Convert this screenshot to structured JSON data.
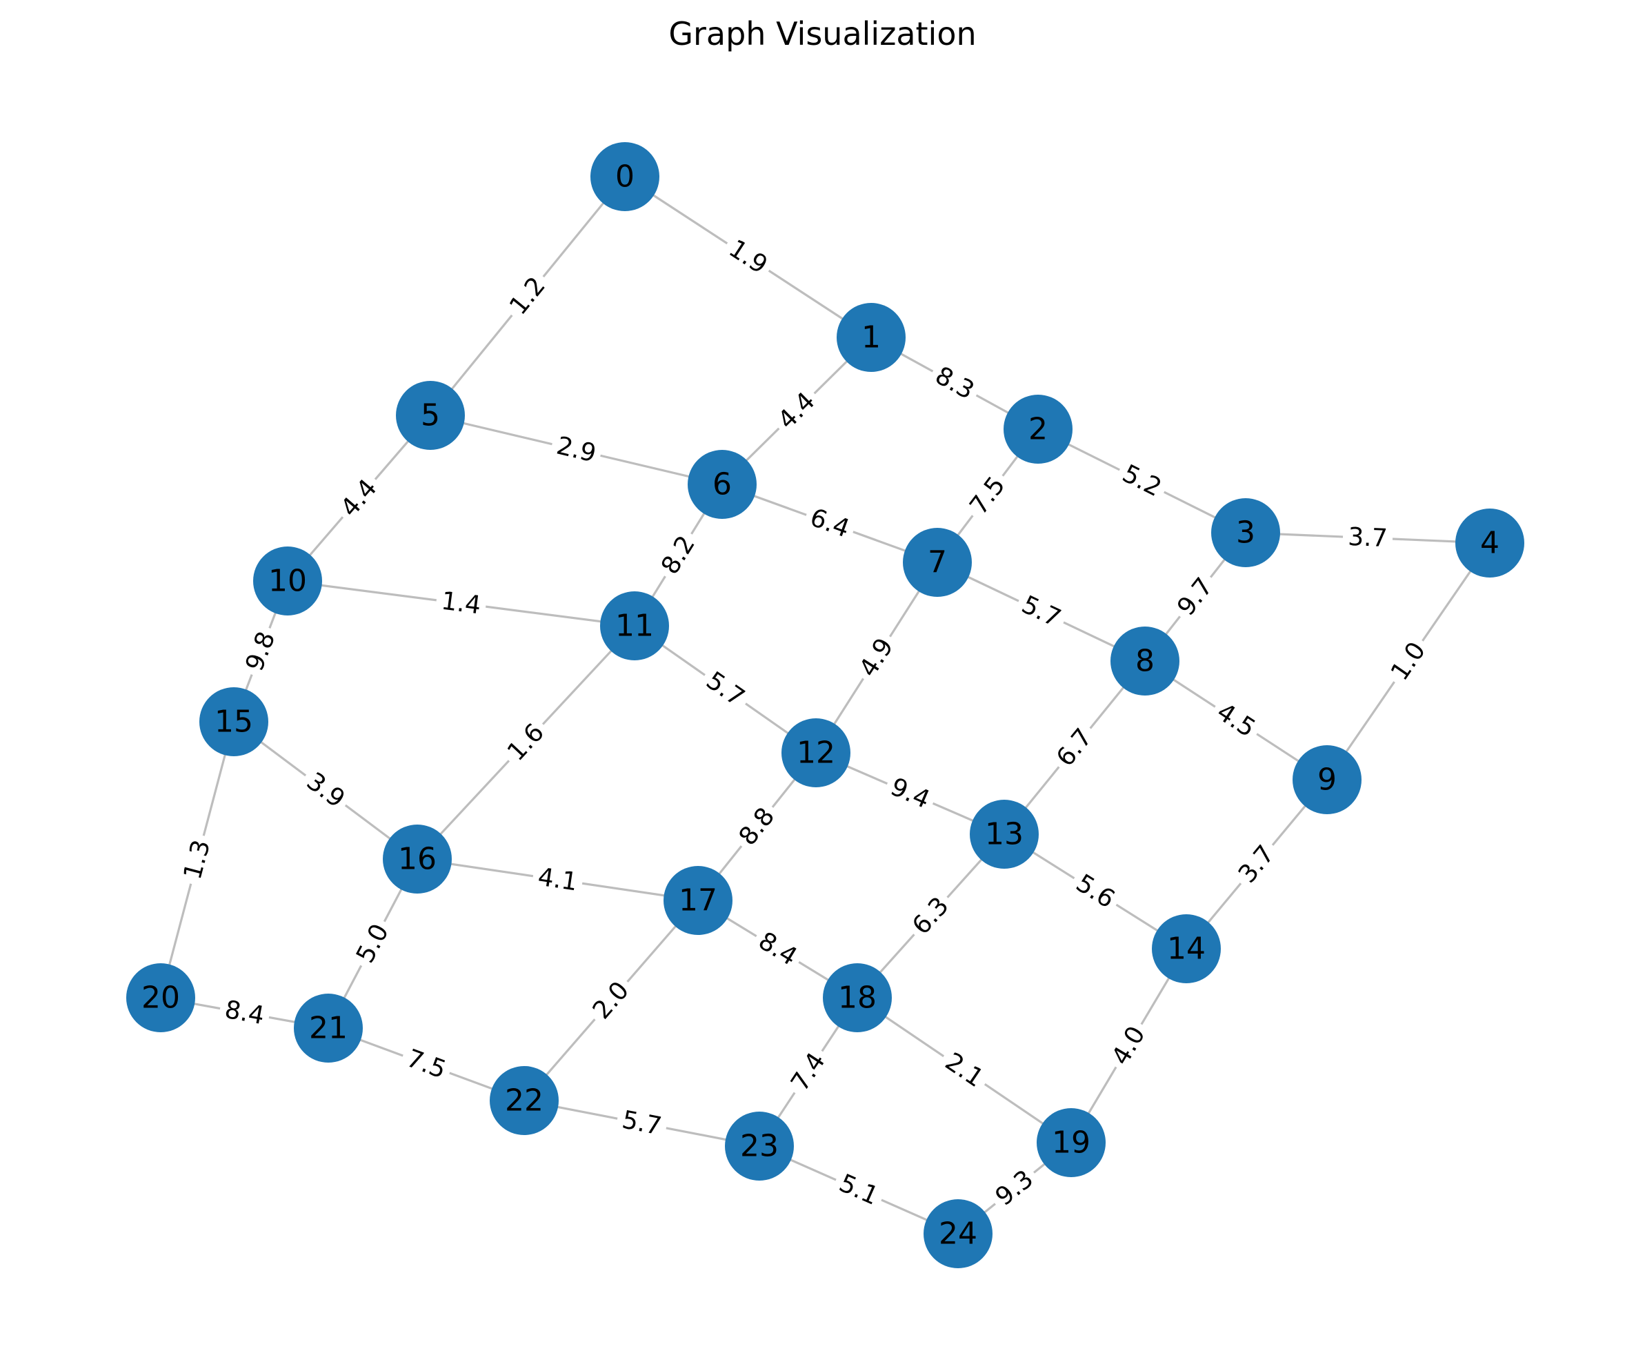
{
  "title": "Graph Visualization",
  "colors": {
    "node": "#1f77b4",
    "edge": "#bdbdbd",
    "label": "#000000"
  },
  "nodes": [
    "0",
    "1",
    "2",
    "3",
    "4",
    "5",
    "6",
    "7",
    "8",
    "9",
    "10",
    "11",
    "12",
    "13",
    "14",
    "15",
    "16",
    "17",
    "18",
    "19",
    "20",
    "21",
    "22",
    "23",
    "24"
  ],
  "edges": [
    {
      "source": "0",
      "target": "1",
      "weight": "1.9"
    },
    {
      "source": "0",
      "target": "5",
      "weight": "1.2"
    },
    {
      "source": "1",
      "target": "2",
      "weight": "8.3"
    },
    {
      "source": "1",
      "target": "6",
      "weight": "4.4"
    },
    {
      "source": "2",
      "target": "3",
      "weight": "5.2"
    },
    {
      "source": "2",
      "target": "7",
      "weight": "7.5"
    },
    {
      "source": "3",
      "target": "4",
      "weight": "3.7"
    },
    {
      "source": "3",
      "target": "8",
      "weight": "9.7"
    },
    {
      "source": "4",
      "target": "9",
      "weight": "1.0"
    },
    {
      "source": "5",
      "target": "6",
      "weight": "2.9"
    },
    {
      "source": "5",
      "target": "10",
      "weight": "4.4"
    },
    {
      "source": "6",
      "target": "7",
      "weight": "6.4"
    },
    {
      "source": "6",
      "target": "11",
      "weight": "8.2"
    },
    {
      "source": "7",
      "target": "8",
      "weight": "5.7"
    },
    {
      "source": "7",
      "target": "12",
      "weight": "4.9"
    },
    {
      "source": "8",
      "target": "9",
      "weight": "4.5"
    },
    {
      "source": "8",
      "target": "13",
      "weight": "6.7"
    },
    {
      "source": "9",
      "target": "14",
      "weight": "3.7"
    },
    {
      "source": "10",
      "target": "11",
      "weight": "1.4"
    },
    {
      "source": "10",
      "target": "15",
      "weight": "9.8"
    },
    {
      "source": "11",
      "target": "12",
      "weight": "5.7"
    },
    {
      "source": "11",
      "target": "16",
      "weight": "1.6"
    },
    {
      "source": "12",
      "target": "13",
      "weight": "9.4"
    },
    {
      "source": "12",
      "target": "17",
      "weight": "8.8"
    },
    {
      "source": "13",
      "target": "14",
      "weight": "5.6"
    },
    {
      "source": "13",
      "target": "18",
      "weight": "6.3"
    },
    {
      "source": "14",
      "target": "19",
      "weight": "4.0"
    },
    {
      "source": "15",
      "target": "16",
      "weight": "3.9"
    },
    {
      "source": "15",
      "target": "20",
      "weight": "1.3"
    },
    {
      "source": "16",
      "target": "17",
      "weight": "4.1"
    },
    {
      "source": "16",
      "target": "21",
      "weight": "5.0"
    },
    {
      "source": "17",
      "target": "18",
      "weight": "8.4"
    },
    {
      "source": "17",
      "target": "22",
      "weight": "2.0"
    },
    {
      "source": "18",
      "target": "19",
      "weight": "2.1"
    },
    {
      "source": "18",
      "target": "23",
      "weight": "7.4"
    },
    {
      "source": "19",
      "target": "24",
      "weight": "9.3"
    },
    {
      "source": "20",
      "target": "21",
      "weight": "8.4"
    },
    {
      "source": "21",
      "target": "22",
      "weight": "7.5"
    },
    {
      "source": "22",
      "target": "23",
      "weight": "5.7"
    },
    {
      "source": "23",
      "target": "24",
      "weight": "5.1"
    }
  ]
}
